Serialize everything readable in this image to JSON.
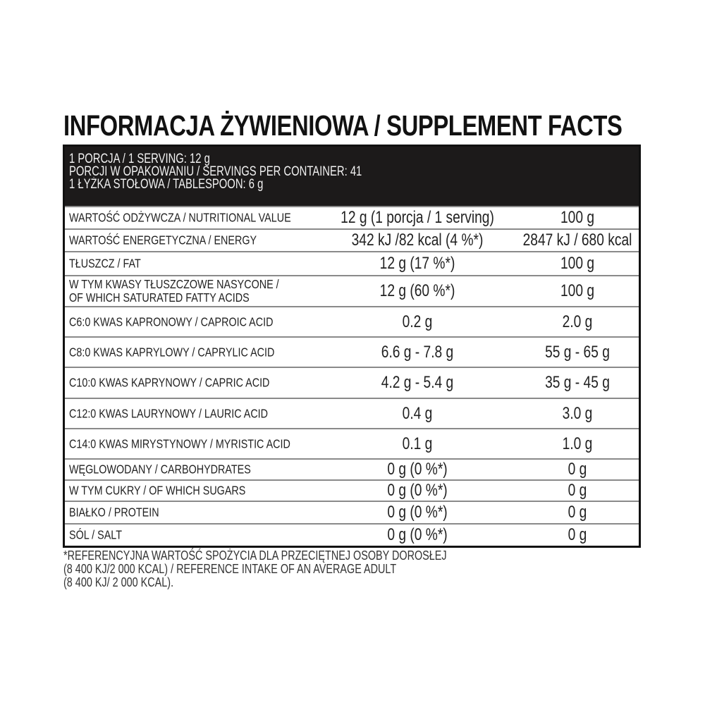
{
  "title": "INFORMACJA ŻYWIENIOWA / SUPPLEMENT FACTS",
  "header": [
    "1 PORCJA / 1 SERVING: 12 g",
    "PORCJI W OPAKOWANIU / SERVINGS PER CONTAINER: 41",
    "1 ŁYŻKA STOŁOWA / TABLESPOON: 6 g"
  ],
  "rows": [
    {
      "label": [
        "WARTOŚĆ ODŻYWCZA / NUTRITIONAL VALUE"
      ],
      "serving": "12 g (1 porcja / 1 serving)",
      "per100": "100 g"
    },
    {
      "label": [
        "WARTOŚĆ ENERGETYCZNA / ENERGY"
      ],
      "serving": "342 kJ /82 kcal (4 %*)",
      "per100": "2847 kJ / 680 kcal"
    },
    {
      "label": [
        "TŁUSZCZ / FAT"
      ],
      "serving": "12 g (17 %*)",
      "per100": "100 g"
    },
    {
      "label": [
        "W TYM KWASY TŁUSZCZOWE NASYCONE /",
        "OF WHICH SATURATED FATTY ACIDS"
      ],
      "serving": "12 g (60 %*)",
      "per100": "100 g"
    },
    {
      "label": [
        "C6:0 KWAS KAPRONOWY / CAPROIC ACID"
      ],
      "serving": "0.2 g",
      "per100": "2.0 g"
    },
    {
      "label": [
        "C8:0 KWAS KAPRYLOWY / CAPRYLIC ACID"
      ],
      "serving": "6.6 g - 7.8 g",
      "per100": "55 g - 65 g"
    },
    {
      "label": [
        "C10:0 KWAS KAPRYNOWY / CAPRIC ACID"
      ],
      "serving": "4.2 g - 5.4 g",
      "per100": "35 g - 45 g"
    },
    {
      "label": [
        "C12:0 KWAS LAURYNOWY / LAURIC ACID"
      ],
      "serving": "0.4 g",
      "per100": "3.0 g"
    },
    {
      "label": [
        "C14:0 KWAS MIRYSTYNOWY / MYRISTIC ACID"
      ],
      "serving": "0.1 g",
      "per100": "1.0 g"
    },
    {
      "label": [
        "WĘGLOWODANY / CARBOHYDRATES"
      ],
      "serving": "0 g (0 %*)",
      "per100": "0 g"
    },
    {
      "label": [
        "W TYM CUKRY / OF WHICH SUGARS"
      ],
      "serving": "0 g (0 %*)",
      "per100": "0 g"
    },
    {
      "label": [
        "BIAŁKO / PROTEIN"
      ],
      "serving": "0 g (0 %*)",
      "per100": "0 g"
    },
    {
      "label": [
        "SÓL / SALT"
      ],
      "serving": "0 g (0 %*)",
      "per100": "0 g"
    }
  ],
  "footnote": [
    "*REFERENCYJNA WARTOŚĆ SPOŻYCIA DLA PRZECIĘTNEJ OSOBY DOROSŁEJ",
    "(8 400 KJ/2 000 KCAL) / REFERENCE INTAKE OF AN AVERAGE ADULT",
    "(8 400 KJ/ 2 000 KCAL)."
  ]
}
